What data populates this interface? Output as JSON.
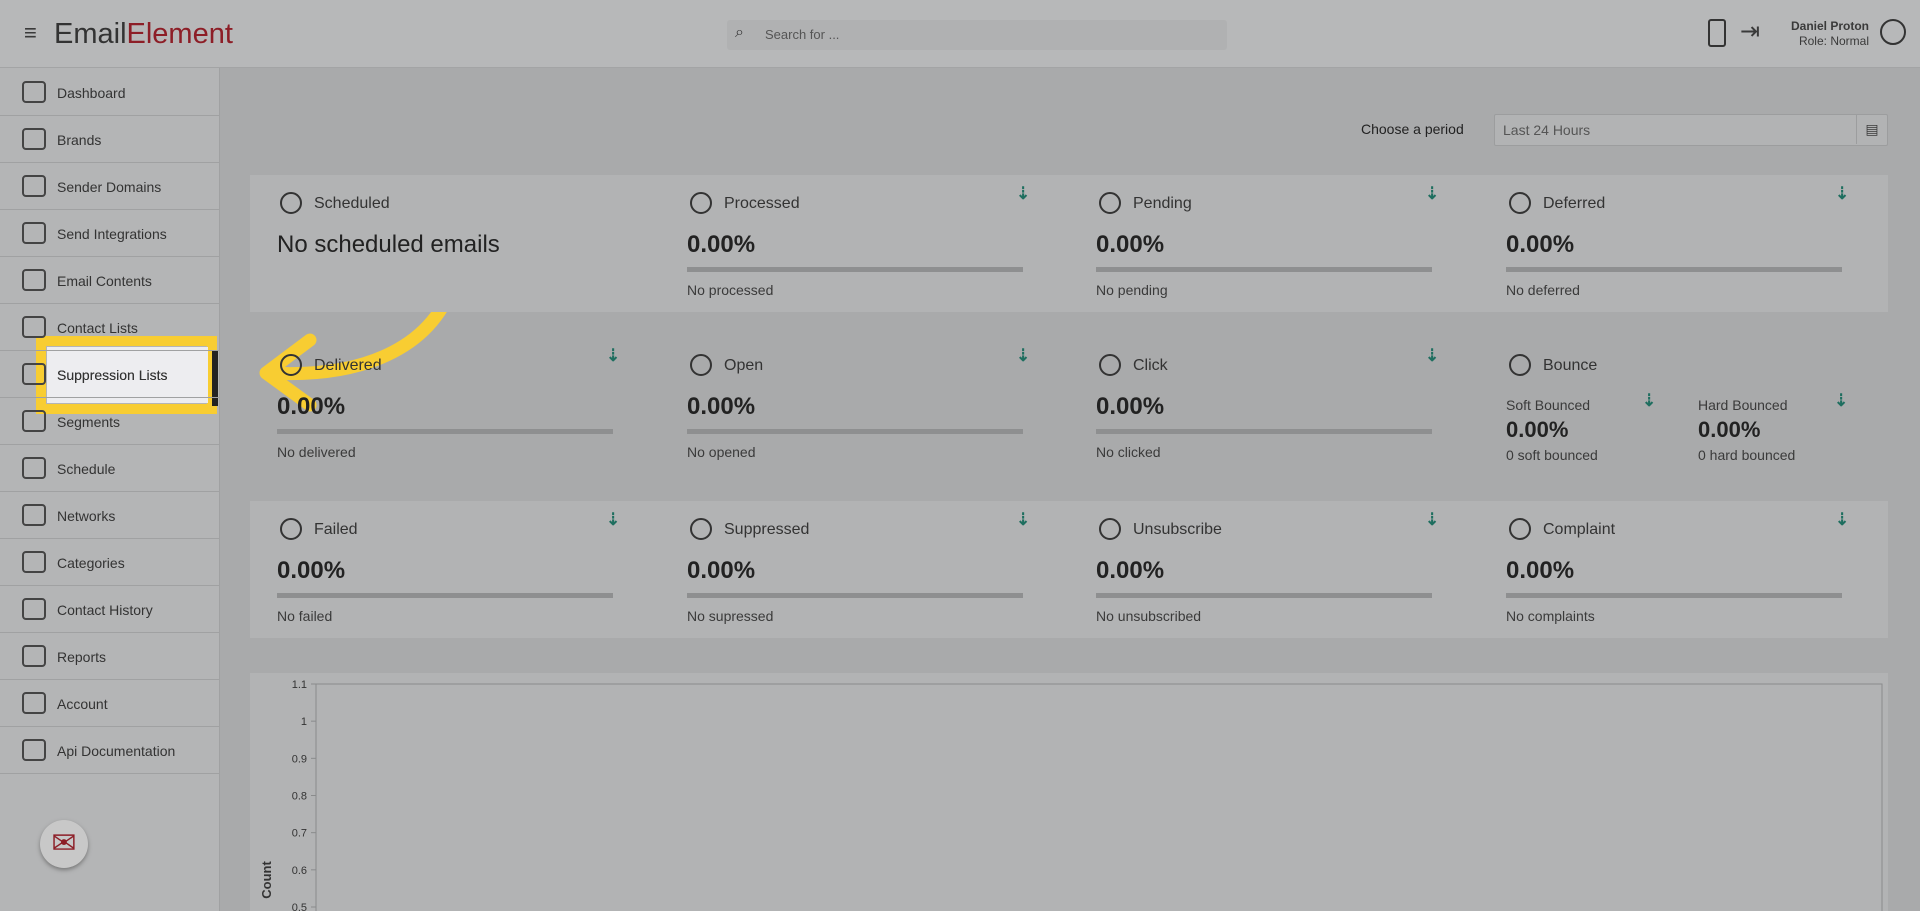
{
  "header": {
    "logo": [
      "Email",
      "Element"
    ],
    "search_placeholder": "Search for ...",
    "user_name": "Daniel Proton",
    "user_role": "Role: Normal"
  },
  "sidebar": {
    "items": [
      "Dashboard",
      "Brands",
      "Sender Domains",
      "Send Integrations",
      "Email Contents",
      "Contact Lists",
      "Suppression Lists",
      "Segments",
      "Schedule",
      "Networks",
      "Categories",
      "Contact History",
      "Reports",
      "Account",
      "Api Documentation"
    ]
  },
  "period": {
    "label": "Choose a period",
    "value": "Last 24 Hours"
  },
  "cards": [
    [
      {
        "title": "Scheduled",
        "value": "No scheduled emails"
      },
      {
        "title": "Processed",
        "value": "0.00%",
        "note": "No processed"
      },
      {
        "title": "Pending",
        "value": "0.00%",
        "note": "No pending"
      },
      {
        "title": "Deferred",
        "value": "0.00%",
        "note": "No deferred"
      }
    ],
    [
      {
        "title": "Delivered",
        "value": "0.00%",
        "note": "No delivered"
      },
      {
        "title": "Open",
        "value": "0.00%",
        "note": "No opened"
      },
      {
        "title": "Click",
        "value": "0.00%",
        "note": "No clicked"
      },
      {
        "title": "Bounce",
        "subs": [
          {
            "title": "Soft Bounced",
            "value": "0.00%",
            "note": "0 soft bounced"
          },
          {
            "title": "Hard Bounced",
            "value": "0.00%",
            "note": "0 hard bounced"
          }
        ]
      }
    ],
    [
      {
        "title": "Failed",
        "value": "0.00%",
        "note": "No failed"
      },
      {
        "title": "Suppressed",
        "value": "0.00%",
        "note": "No supressed"
      },
      {
        "title": "Unsubscribe",
        "value": "0.00%",
        "note": "No unsubscribed"
      },
      {
        "title": "Complaint",
        "value": "0.00%",
        "note": "No complaints"
      }
    ]
  ],
  "chart": {
    "ylabel": "Count",
    "ylim": [
      0.5,
      1.1
    ],
    "yticks": [
      1.1,
      1,
      0.9,
      0.8,
      0.7,
      0.6,
      0.5
    ]
  }
}
